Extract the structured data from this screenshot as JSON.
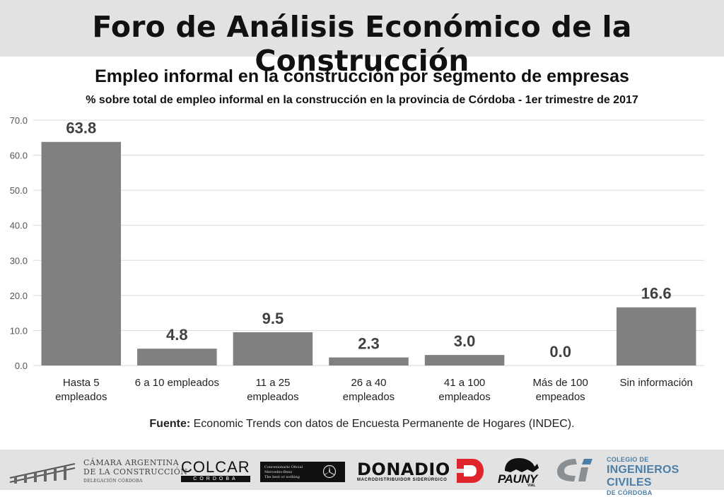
{
  "header": {
    "title": "Foro de Análisis Económico de la Construcción"
  },
  "chart_data": {
    "type": "bar",
    "title": "Empleo informal en la construcción por segmento de empresas",
    "subtitle": "% sobre total de empleo informal en la construcción en la provincia de Córdoba - 1er trimestre de 2017",
    "categories": [
      [
        "Hasta 5",
        "empleados"
      ],
      [
        "6 a 10 empleados"
      ],
      [
        "11 a 25",
        "empleados"
      ],
      [
        "26 a 40",
        "empleados"
      ],
      [
        "41 a 100",
        "empleados"
      ],
      [
        "Más de 100",
        "empeados"
      ],
      [
        "Sin información"
      ]
    ],
    "values": [
      63.8,
      4.8,
      9.5,
      2.3,
      3.0,
      0.0,
      16.6
    ],
    "value_labels": [
      "63.8",
      "4.8",
      "9.5",
      "2.3",
      "3.0",
      "0.0",
      "16.6"
    ],
    "ylim": [
      0,
      70
    ],
    "yticks": [
      0,
      10,
      20,
      30,
      40,
      50,
      60,
      70
    ],
    "ytick_labels": [
      "0.0",
      "10.0",
      "20.0",
      "30.0",
      "40.0",
      "50.0",
      "60.0",
      "70.0"
    ],
    "grid": true,
    "bar_color": "#808080",
    "xlabel": "",
    "ylabel": ""
  },
  "source": {
    "label": "Fuente:",
    "text": " Economic Trends con datos de Encuesta Permanente de Hogares (INDEC)."
  },
  "sponsors": {
    "camara": [
      "CÁMARA ARGENTINA",
      "DE LA CONSTRUCCIÓN",
      "DELEGACIÓN CÓRDOBA"
    ],
    "colcar": [
      "COLCAR",
      "CÓRDOBA"
    ],
    "mercedes": [
      "Concesionario Oficial",
      "Mercedes-Benz",
      "The best or nothing"
    ],
    "donadio": [
      "DONADIO",
      "MACRODISTRIBUIDOR SIDERÚRGICO"
    ],
    "pauny": [
      "PAUNY",
      "VIAL"
    ],
    "colegio": [
      "COLEGIO DE",
      "INGENIEROS CIVILES",
      "DE CÓRDOBA"
    ]
  },
  "colors": {
    "header_bg": "#e2e2e2",
    "footer_bg": "#e2e2e2",
    "bar": "#808080",
    "grid": "#d9d9d9",
    "colegio_blue": "#4b7fa8",
    "donadio_red": "#e0242b"
  }
}
